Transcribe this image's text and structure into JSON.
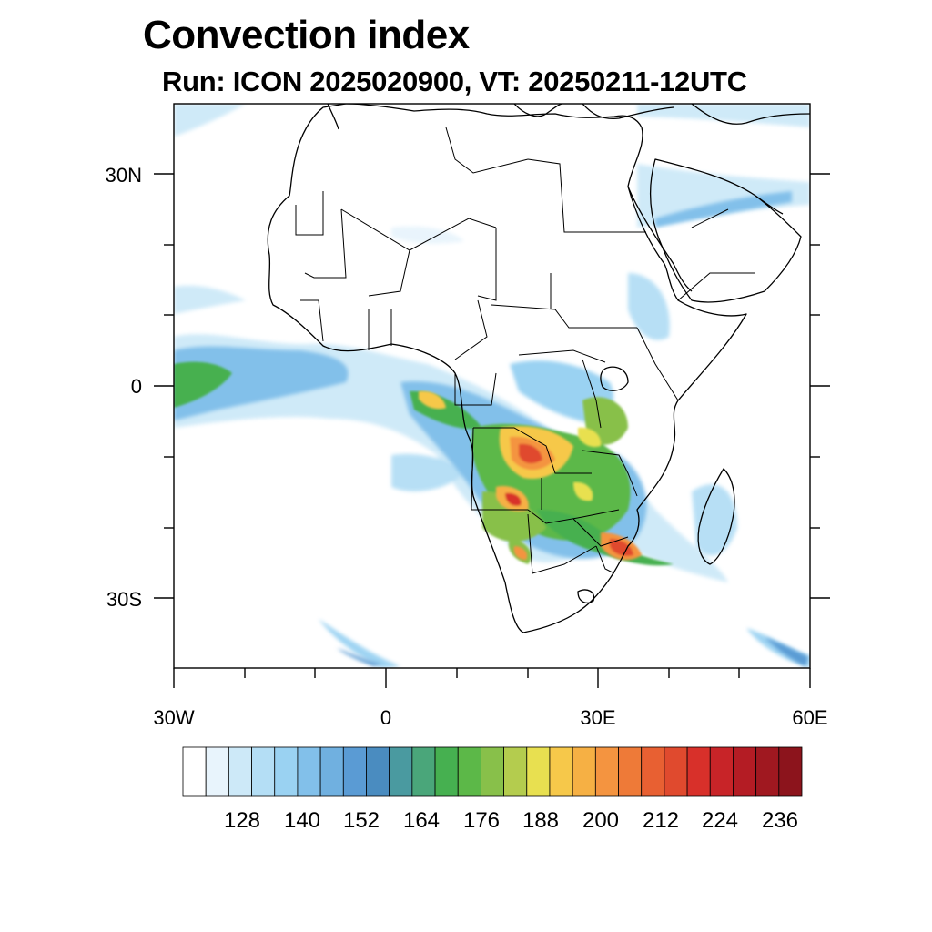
{
  "title": "Convection index",
  "subtitle": "Run: ICON 2025020900,  VT: 20250211-12UTC",
  "axes": {
    "y_ticks": [
      {
        "label": "30N",
        "lat": 30
      },
      {
        "label": "0",
        "lat": 0
      },
      {
        "label": "30S",
        "lat": -30
      }
    ],
    "x_ticks": [
      {
        "label": "30W",
        "lon": -30
      },
      {
        "label": "0",
        "lon": 0
      },
      {
        "label": "30E",
        "lon": 30
      },
      {
        "label": "60E",
        "lon": 60
      }
    ],
    "lon_range": [
      -30,
      60
    ],
    "lat_range": [
      -40,
      40
    ]
  },
  "colorbar": {
    "labels": [
      "128",
      "140",
      "152",
      "164",
      "176",
      "188",
      "200",
      "212",
      "224",
      "236"
    ],
    "colors": [
      "#ffffff",
      "#e8f4fc",
      "#cde9f8",
      "#b4def5",
      "#9ad2f2",
      "#82c0ea",
      "#70b0e0",
      "#5a9bd4",
      "#4a8cc0",
      "#4a9aa0",
      "#4aa67a",
      "#46b050",
      "#5cb848",
      "#88c04a",
      "#b4cc4e",
      "#e8e050",
      "#f6c84a",
      "#f6b044",
      "#f49440",
      "#ee7a38",
      "#e86032",
      "#e04a2e",
      "#d8302a",
      "#c82428",
      "#b41c24",
      "#a01820",
      "#8c141c"
    ]
  },
  "legend_colors": {
    "land_outline": "#000000",
    "background": "#ffffff"
  }
}
